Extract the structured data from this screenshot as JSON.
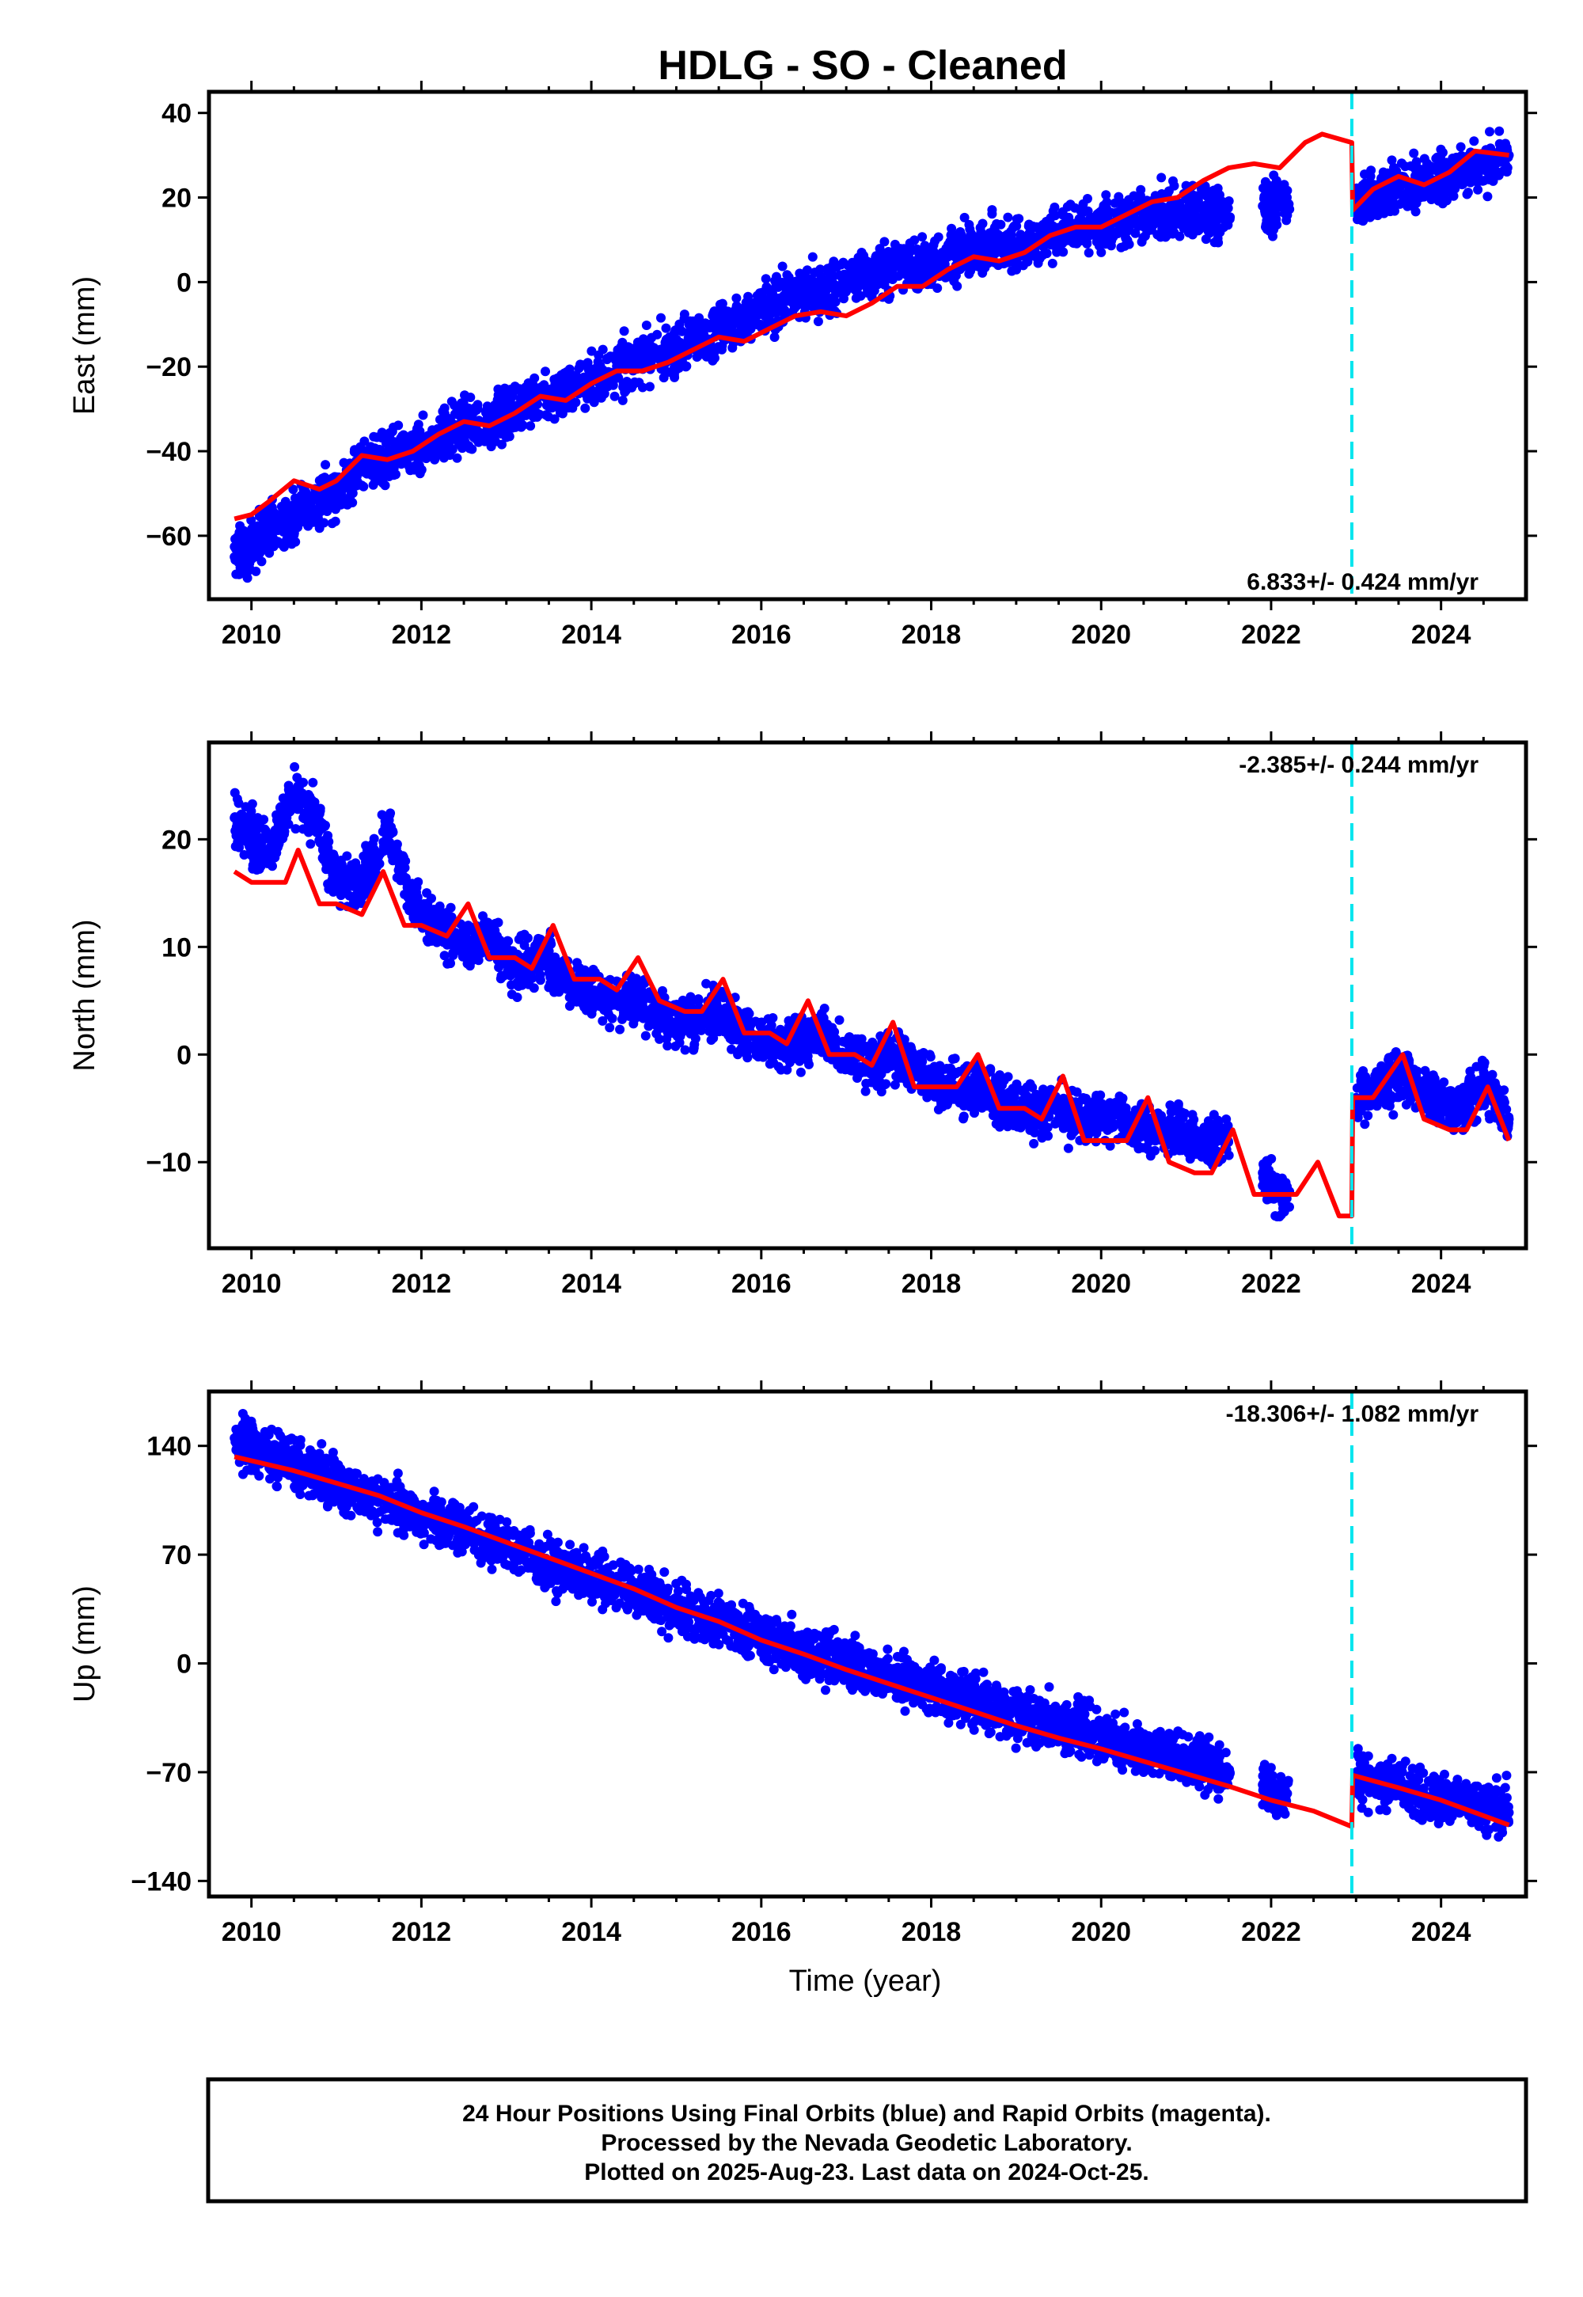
{
  "title": "HDLG  - SO - Cleaned",
  "xlabel": "Time (year)",
  "colors": {
    "points": "#0000ff",
    "model": "#ff0000",
    "break_line": "#00e5ee",
    "frame": "#000000"
  },
  "footer": {
    "line1": "24 Hour Positions Using Final Orbits (blue) and Rapid Orbits (magenta).",
    "line2": "Processed by the Nevada Geodetic Laboratory.",
    "line3": "Plotted on 2025-Aug-23. Last data on 2024-Oct-25."
  },
  "chart_data": [
    {
      "type": "scatter",
      "panel": "east",
      "ylabel": "East (mm)",
      "xlim": [
        2009.5,
        2025.0
      ],
      "ylim": [
        -75,
        45
      ],
      "xticks": [
        2010,
        2012,
        2014,
        2016,
        2018,
        2020,
        2022,
        2024
      ],
      "xtick_labels": [
        "2010",
        "2012",
        "2014",
        "2016",
        "2018",
        "2020",
        "2022",
        "2024"
      ],
      "yticks": [
        -60,
        -40,
        -20,
        0,
        20,
        40
      ],
      "ytick_labels": [
        "−60",
        "−40",
        "−20",
        "0",
        "20",
        "40"
      ],
      "rate_label": "6.833+/- 0.424 mm/yr",
      "rate_label_position": "bottom-right",
      "break_line_x": 2022.95,
      "observations_x": [
        2009.8,
        2010.0,
        2010.2,
        2010.5,
        2010.8,
        2011.0,
        2011.3,
        2011.6,
        2011.9,
        2012.2,
        2012.5,
        2012.8,
        2013.1,
        2013.4,
        2013.7,
        2014.0,
        2014.3,
        2014.6,
        2014.9,
        2015.2,
        2015.5,
        2015.8,
        2016.1,
        2016.4,
        2016.7,
        2017.0,
        2017.3,
        2017.6,
        2017.9,
        2018.2,
        2018.5,
        2018.8,
        2019.1,
        2019.4,
        2019.7,
        2020.0,
        2020.3,
        2020.6,
        2020.9,
        2021.2,
        2021.4,
        2021.9,
        2022.1,
        2023.0,
        2023.3,
        2023.6,
        2023.9,
        2024.2,
        2024.5,
        2024.8
      ],
      "observations_y": [
        -65,
        -63,
        -58,
        -55,
        -52,
        -49,
        -44,
        -42,
        -40,
        -37,
        -34,
        -33,
        -30,
        -27,
        -26,
        -23,
        -21,
        -18,
        -16,
        -14,
        -11,
        -9,
        -6,
        -3,
        -2,
        0,
        2,
        4,
        4,
        6,
        8,
        9,
        9,
        11,
        12,
        13,
        15,
        16,
        16,
        17,
        16,
        18,
        19,
        19,
        21,
        23,
        24,
        26,
        28,
        30
      ],
      "model_x": [
        2009.8,
        2010.0,
        2010.2,
        2010.5,
        2010.8,
        2011.0,
        2011.3,
        2011.6,
        2011.9,
        2012.2,
        2012.5,
        2012.8,
        2013.1,
        2013.4,
        2013.7,
        2014.0,
        2014.3,
        2014.6,
        2014.9,
        2015.2,
        2015.5,
        2015.8,
        2016.1,
        2016.4,
        2016.7,
        2017.0,
        2017.3,
        2017.6,
        2017.9,
        2018.2,
        2018.5,
        2018.8,
        2019.1,
        2019.4,
        2019.7,
        2020.0,
        2020.3,
        2020.6,
        2020.9,
        2021.2,
        2021.5,
        2021.8,
        2022.1,
        2022.4,
        2022.6,
        2022.95,
        2022.96,
        2023.2,
        2023.5,
        2023.8,
        2024.1,
        2024.4,
        2024.8
      ],
      "model_y": [
        -56,
        -55,
        -52,
        -47,
        -49,
        -47,
        -41,
        -42,
        -40,
        -36,
        -33,
        -34,
        -31,
        -27,
        -28,
        -24,
        -21,
        -21,
        -19,
        -16,
        -13,
        -14,
        -11,
        -8,
        -7,
        -8,
        -5,
        -1,
        -1,
        3,
        6,
        5,
        7,
        11,
        13,
        13,
        16,
        19,
        20,
        24,
        27,
        28,
        27,
        33,
        35,
        33,
        17,
        22,
        25,
        23,
        26,
        31,
        30
      ]
    },
    {
      "type": "scatter",
      "panel": "north",
      "ylabel": "North (mm)",
      "xlim": [
        2009.5,
        2025.0
      ],
      "ylim": [
        -18,
        29
      ],
      "xticks": [
        2010,
        2012,
        2014,
        2016,
        2018,
        2020,
        2022,
        2024
      ],
      "xtick_labels": [
        "2010",
        "2012",
        "2014",
        "2016",
        "2018",
        "2020",
        "2022",
        "2024"
      ],
      "yticks": [
        -10,
        0,
        10,
        20
      ],
      "ytick_labels": [
        "−10",
        "0",
        "10",
        "20"
      ],
      "rate_label": "-2.385+/- 0.244 mm/yr",
      "rate_label_position": "top-right",
      "break_line_x": 2022.95,
      "observations_x": [
        2009.8,
        2010.0,
        2010.2,
        2010.5,
        2010.8,
        2011.0,
        2011.3,
        2011.6,
        2011.9,
        2012.2,
        2012.5,
        2012.8,
        2013.1,
        2013.4,
        2013.7,
        2014.0,
        2014.3,
        2014.6,
        2014.9,
        2015.2,
        2015.5,
        2015.8,
        2016.1,
        2016.4,
        2016.7,
        2017.0,
        2017.3,
        2017.6,
        2017.9,
        2018.2,
        2018.5,
        2018.8,
        2019.1,
        2019.4,
        2019.7,
        2020.0,
        2020.3,
        2020.6,
        2020.9,
        2021.2,
        2021.4,
        2021.9,
        2022.1,
        2023.0,
        2023.3,
        2023.6,
        2023.9,
        2024.2,
        2024.5,
        2024.8
      ],
      "observations_y": [
        22,
        20,
        19,
        24,
        21,
        16,
        16,
        21,
        14,
        12,
        10,
        11,
        8,
        9,
        7,
        6,
        5,
        5,
        3,
        3,
        4,
        2,
        1,
        1,
        2,
        0,
        -1,
        0,
        -2,
        -3,
        -3,
        -4,
        -5,
        -5,
        -6,
        -6,
        -6,
        -7,
        -7,
        -8,
        -8,
        -11,
        -13,
        -4,
        -3,
        -2,
        -4,
        -5,
        -3,
        -6
      ],
      "model_x": [
        2009.8,
        2010.0,
        2010.2,
        2010.4,
        2010.55,
        2010.8,
        2011.0,
        2011.3,
        2011.55,
        2011.8,
        2012.0,
        2012.3,
        2012.55,
        2012.8,
        2013.1,
        2013.3,
        2013.55,
        2013.8,
        2014.1,
        2014.3,
        2014.55,
        2014.8,
        2015.1,
        2015.3,
        2015.55,
        2015.8,
        2016.1,
        2016.3,
        2016.55,
        2016.8,
        2017.1,
        2017.3,
        2017.55,
        2017.8,
        2018.1,
        2018.3,
        2018.55,
        2018.8,
        2019.1,
        2019.3,
        2019.55,
        2019.8,
        2020.1,
        2020.3,
        2020.55,
        2020.8,
        2021.1,
        2021.3,
        2021.55,
        2021.8,
        2022.1,
        2022.3,
        2022.55,
        2022.8,
        2022.95,
        2022.96,
        2023.2,
        2023.55,
        2023.8,
        2024.1,
        2024.3,
        2024.55,
        2024.8
      ],
      "model_y": [
        17,
        16,
        16,
        16,
        19,
        14,
        14,
        13,
        17,
        12,
        12,
        11,
        14,
        9,
        9,
        8,
        12,
        7,
        7,
        6,
        9,
        5,
        4,
        4,
        7,
        2,
        2,
        1,
        5,
        0,
        0,
        -1,
        3,
        -3,
        -3,
        -3,
        0,
        -5,
        -5,
        -6,
        -2,
        -8,
        -8,
        -8,
        -4,
        -10,
        -11,
        -11,
        -7,
        -13,
        -13,
        -13,
        -10,
        -15,
        -15,
        -4,
        -4,
        0,
        -6,
        -7,
        -7,
        -3,
        -8
      ]
    },
    {
      "type": "scatter",
      "panel": "up",
      "ylabel": "Up (mm)",
      "xlim": [
        2009.5,
        2025.0
      ],
      "ylim": [
        -150,
        175
      ],
      "xticks": [
        2010,
        2012,
        2014,
        2016,
        2018,
        2020,
        2022,
        2024
      ],
      "xtick_labels": [
        "2010",
        "2012",
        "2014",
        "2016",
        "2018",
        "2020",
        "2022",
        "2024"
      ],
      "yticks": [
        -140,
        -70,
        0,
        70,
        140
      ],
      "ytick_labels": [
        "−140",
        "−70",
        "0",
        "70",
        "140"
      ],
      "rate_label": "-18.306+/- 1.082 mm/yr",
      "rate_label_position": "top-right",
      "break_line_x": 2022.95,
      "observations_x": [
        2009.8,
        2010.0,
        2010.2,
        2010.5,
        2010.8,
        2011.0,
        2011.3,
        2011.6,
        2011.9,
        2012.2,
        2012.5,
        2012.8,
        2013.1,
        2013.4,
        2013.7,
        2014.0,
        2014.3,
        2014.6,
        2014.9,
        2015.2,
        2015.5,
        2015.8,
        2016.1,
        2016.4,
        2016.7,
        2017.0,
        2017.3,
        2017.6,
        2017.9,
        2018.2,
        2018.5,
        2018.8,
        2019.1,
        2019.4,
        2019.7,
        2020.0,
        2020.3,
        2020.6,
        2020.9,
        2021.2,
        2021.4,
        2021.9,
        2022.1,
        2023.0,
        2023.3,
        2023.6,
        2023.9,
        2024.2,
        2024.5,
        2024.8
      ],
      "observations_y": [
        145,
        140,
        134,
        128,
        121,
        116,
        110,
        104,
        97,
        92,
        86,
        80,
        74,
        67,
        62,
        56,
        50,
        44,
        38,
        32,
        27,
        21,
        15,
        9,
        5,
        0,
        -5,
        -10,
        -14,
        -20,
        -26,
        -30,
        -34,
        -38,
        -43,
        -47,
        -52,
        -56,
        -60,
        -64,
        -68,
        -78,
        -85,
        -72,
        -76,
        -80,
        -85,
        -89,
        -93,
        -96
      ],
      "model_x": [
        2009.8,
        2010.5,
        2011.0,
        2011.5,
        2012.0,
        2012.5,
        2013.0,
        2013.5,
        2014.0,
        2014.5,
        2015.0,
        2015.5,
        2016.0,
        2016.5,
        2017.0,
        2017.5,
        2018.0,
        2018.5,
        2019.0,
        2019.5,
        2020.0,
        2020.5,
        2021.0,
        2021.5,
        2022.0,
        2022.5,
        2022.95,
        2022.96,
        2023.5,
        2024.0,
        2024.5,
        2024.8
      ],
      "model_y": [
        133,
        124,
        116,
        108,
        97,
        88,
        78,
        68,
        58,
        48,
        36,
        27,
        15,
        6,
        -4,
        -13,
        -22,
        -31,
        -40,
        -48,
        -55,
        -63,
        -71,
        -79,
        -88,
        -95,
        -105,
        -72,
        -80,
        -88,
        -98,
        -104
      ]
    }
  ]
}
